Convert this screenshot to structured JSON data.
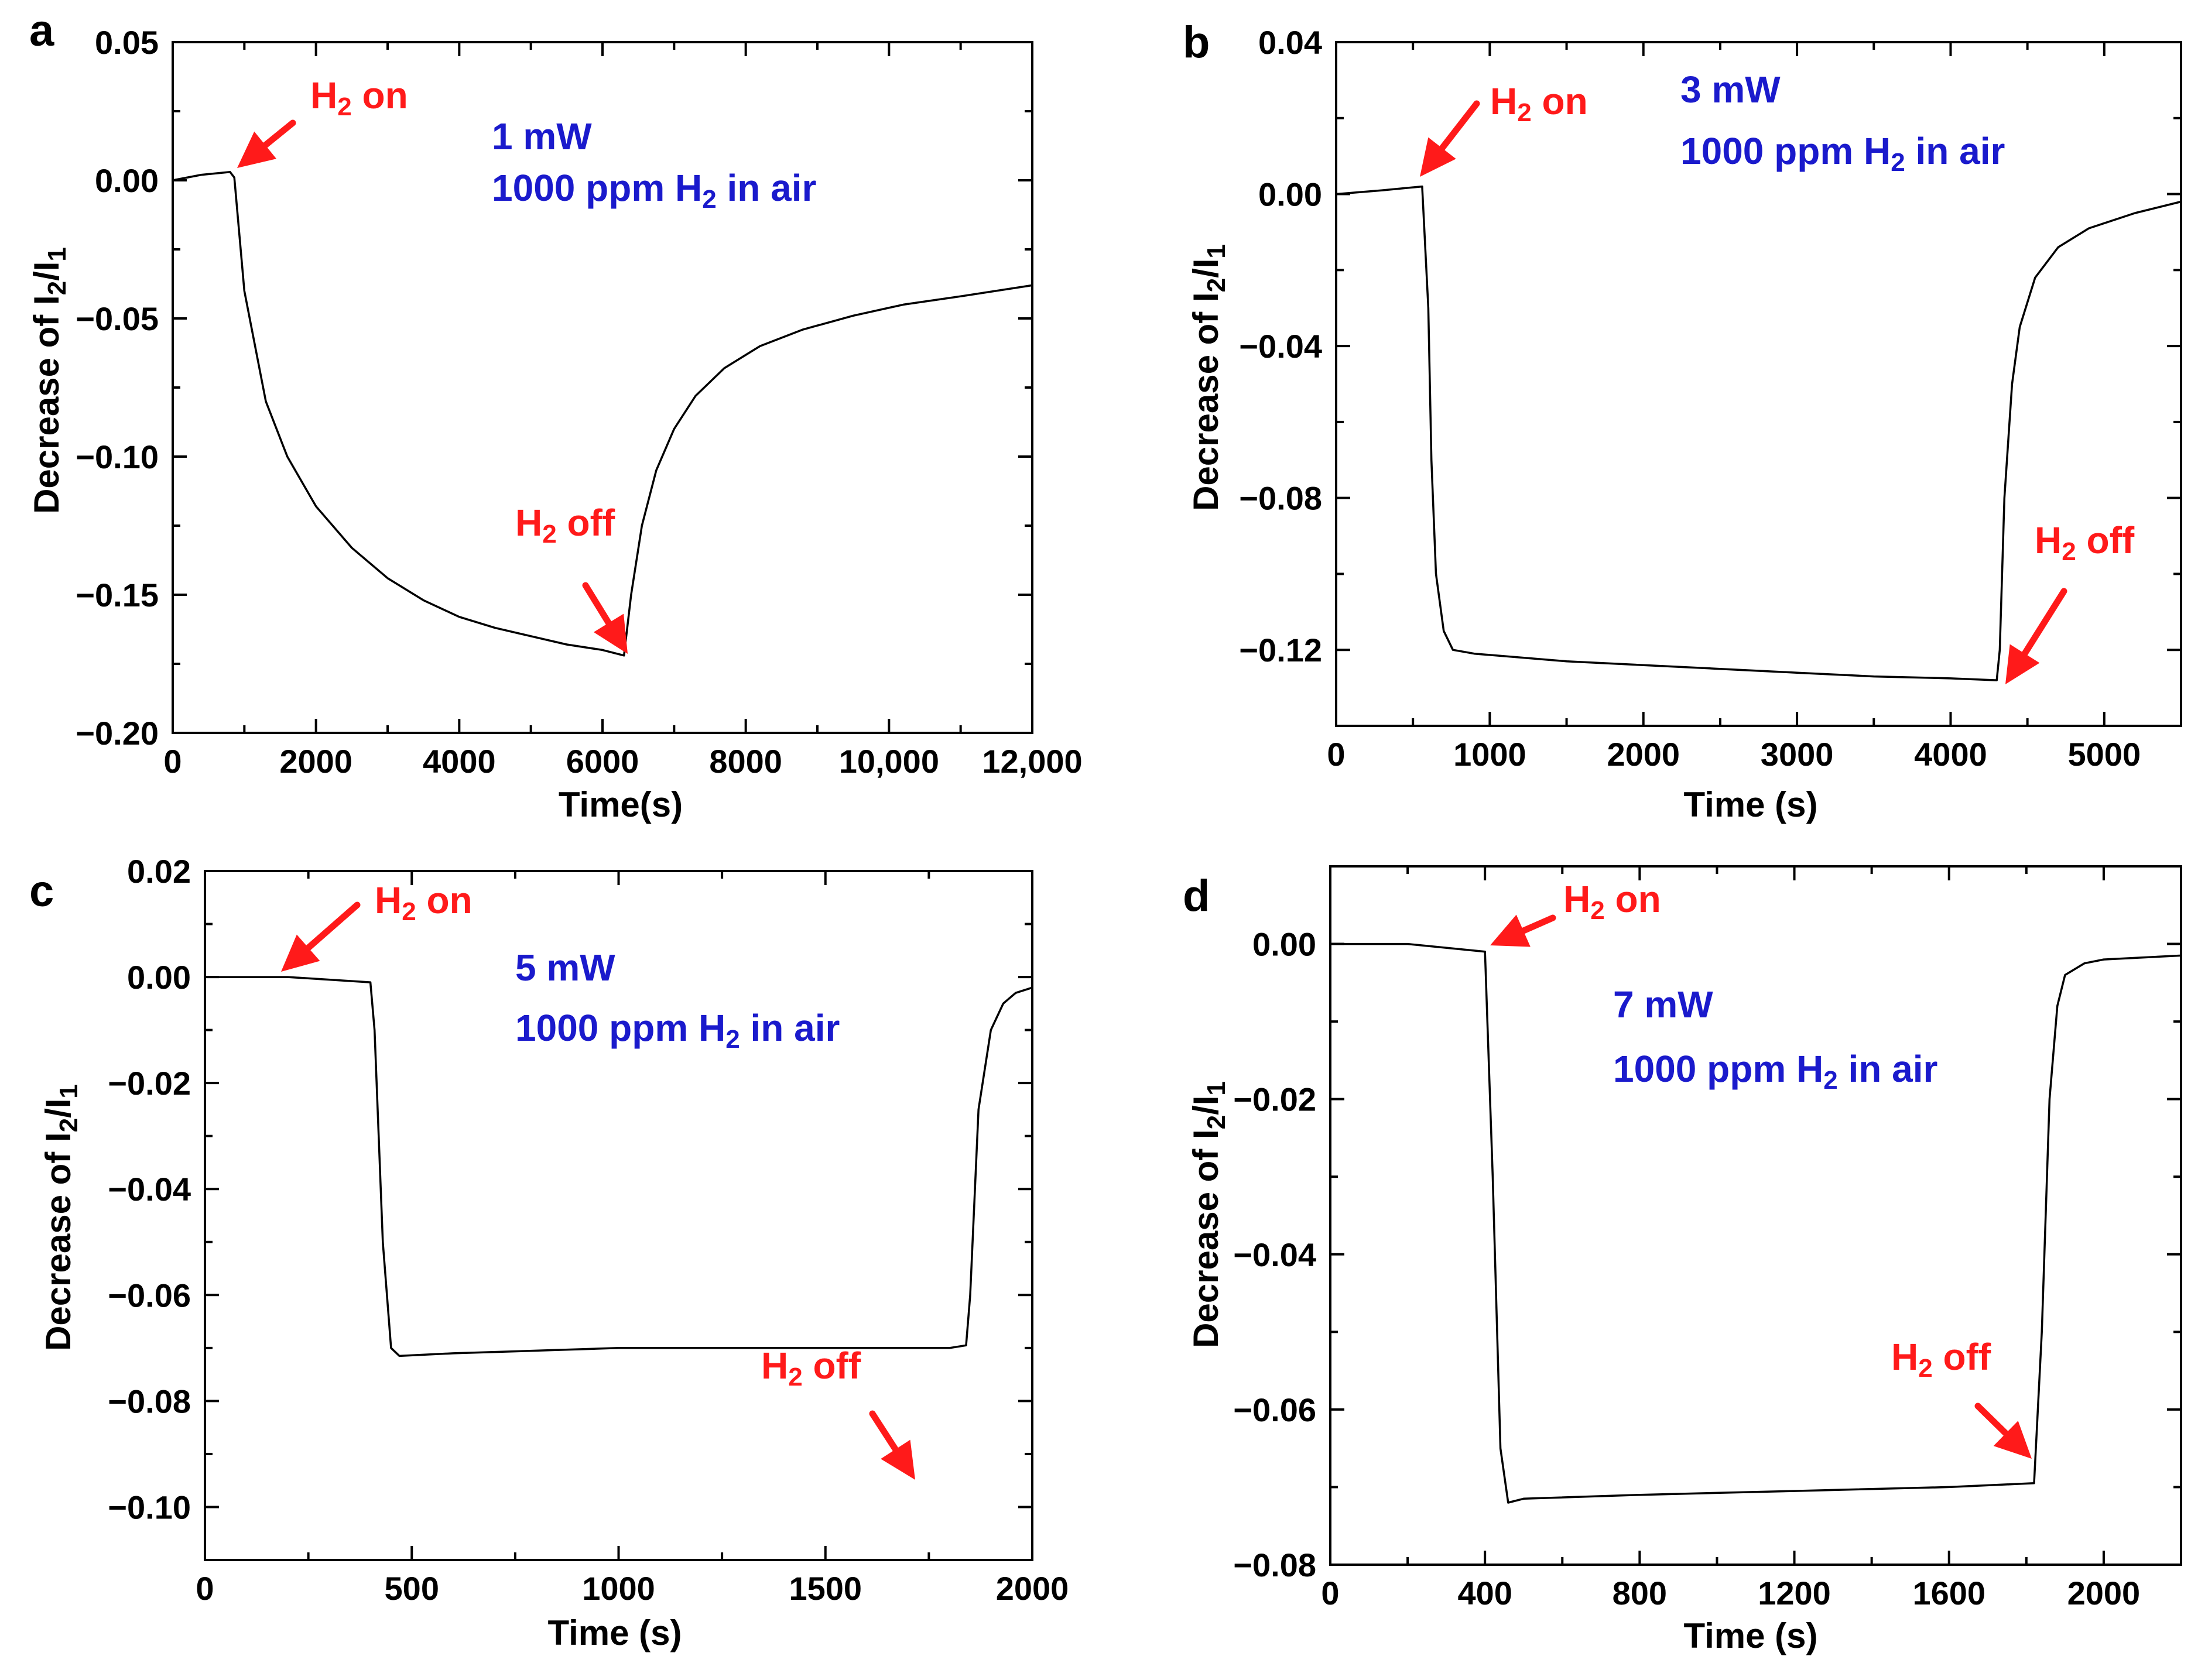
{
  "colors": {
    "axis": "#000000",
    "curve": "#000000",
    "annotation": "#ff1a1a",
    "condition": "#1a1acc"
  },
  "chart_data": [
    {
      "panel": "a",
      "type": "line",
      "xlabel": "Time(s)",
      "ylabel": {
        "prefix": "Decrease of I",
        "sub1": "2",
        "slash": "/I",
        "sub2": "1"
      },
      "xlim": [
        0,
        12000
      ],
      "ylim": [
        -0.2,
        0.05
      ],
      "xticks": [
        0,
        2000,
        4000,
        6000,
        8000,
        10000,
        12000
      ],
      "xtick_labels": [
        "0",
        "2000",
        "4000",
        "6000",
        "8000",
        "10,000",
        "12,000"
      ],
      "yticks": [
        -0.2,
        -0.15,
        -0.1,
        -0.05,
        0.0,
        0.05
      ],
      "ytick_labels": [
        "−0.20",
        "−0.15",
        "−0.10",
        "−0.05",
        "0.00",
        "0.05"
      ],
      "conditions": [
        "1 mW",
        "1000 ppm H2 in air"
      ],
      "on_label": "H2 on",
      "off_label": "H2 off",
      "on_arrow_tip": [
        850,
        0.003
      ],
      "off_arrow_tip": [
        6300,
        -0.172
      ],
      "x": [
        0,
        400,
        800,
        860,
        1000,
        1300,
        1600,
        2000,
        2500,
        3000,
        3500,
        4000,
        4500,
        5000,
        5500,
        6000,
        6300,
        6400,
        6550,
        6750,
        7000,
        7300,
        7700,
        8200,
        8800,
        9500,
        10200,
        11000,
        12000
      ],
      "y": [
        0.0,
        0.002,
        0.003,
        0.001,
        -0.04,
        -0.08,
        -0.1,
        -0.118,
        -0.133,
        -0.144,
        -0.152,
        -0.158,
        -0.162,
        -0.165,
        -0.168,
        -0.17,
        -0.172,
        -0.15,
        -0.125,
        -0.105,
        -0.09,
        -0.078,
        -0.068,
        -0.06,
        -0.054,
        -0.049,
        -0.045,
        -0.042,
        -0.038
      ]
    },
    {
      "panel": "b",
      "type": "line",
      "xlabel": "Time (s)",
      "ylabel": {
        "prefix": "Decrease of I",
        "sub1": "2",
        "slash": "/I",
        "sub2": "1"
      },
      "xlim": [
        0,
        5500
      ],
      "ylim": [
        -0.14,
        0.04
      ],
      "xticks": [
        0,
        1000,
        2000,
        3000,
        4000,
        5000
      ],
      "xtick_labels": [
        "0",
        "1000",
        "2000",
        "3000",
        "4000",
        "5000"
      ],
      "yticks": [
        -0.12,
        -0.08,
        -0.04,
        0.0,
        0.04
      ],
      "ytick_labels": [
        "−0.12",
        "−0.08",
        "−0.04",
        "0.00",
        "0.04"
      ],
      "conditions": [
        "3 mW",
        "1000 ppm H2 in air"
      ],
      "on_label": "H2 on",
      "off_label": "H2 off",
      "on_arrow_tip": [
        560,
        0.002
      ],
      "off_arrow_tip": [
        4320,
        -0.128
      ],
      "x": [
        0,
        300,
        560,
        600,
        620,
        650,
        700,
        760,
        900,
        1500,
        2000,
        2500,
        3000,
        3500,
        4000,
        4300,
        4320,
        4350,
        4400,
        4450,
        4550,
        4700,
        4900,
        5200,
        5500
      ],
      "y": [
        0.0,
        0.001,
        0.002,
        -0.03,
        -0.07,
        -0.1,
        -0.115,
        -0.12,
        -0.121,
        -0.123,
        -0.124,
        -0.125,
        -0.126,
        -0.127,
        -0.1275,
        -0.128,
        -0.12,
        -0.08,
        -0.05,
        -0.035,
        -0.022,
        -0.014,
        -0.009,
        -0.005,
        -0.002
      ]
    },
    {
      "panel": "c",
      "type": "line",
      "xlabel": "Time (s)",
      "ylabel": {
        "prefix": "Decrease of I",
        "sub1": "2",
        "slash": "/I",
        "sub2": "1"
      },
      "xlim": [
        0,
        2000
      ],
      "ylim": [
        -0.11,
        0.02
      ],
      "xticks": [
        0,
        500,
        1000,
        1500,
        2000
      ],
      "xtick_labels": [
        "0",
        "500",
        "1000",
        "1500",
        "2000"
      ],
      "yticks": [
        -0.1,
        -0.08,
        -0.06,
        -0.04,
        -0.02,
        0.0,
        0.02
      ],
      "ytick_labels": [
        "−0.10",
        "−0.08",
        "−0.06",
        "−0.04",
        "−0.02",
        "0.00",
        "0.02"
      ],
      "conditions": [
        "5 mW",
        "1000 ppm H2 in air"
      ],
      "on_label": "H2 on",
      "off_label": "H2 off",
      "on_arrow_tip": [
        190,
        0.0
      ],
      "off_arrow_tip": [
        1720,
        -0.095
      ],
      "x": [
        0,
        200,
        400,
        410,
        430,
        450,
        470,
        600,
        800,
        1000,
        1200,
        1400,
        1600,
        1800,
        1840,
        1850,
        1870,
        1900,
        1930,
        1960,
        2000
      ],
      "y": [
        0.0,
        0.0,
        -0.001,
        -0.01,
        -0.05,
        -0.07,
        -0.0715,
        -0.071,
        -0.0705,
        -0.07,
        -0.07,
        -0.07,
        -0.07,
        -0.07,
        -0.0695,
        -0.06,
        -0.025,
        -0.01,
        -0.005,
        -0.003,
        -0.002
      ]
    },
    {
      "panel": "d",
      "type": "line",
      "xlabel": "Time (s)",
      "ylabel": {
        "prefix": "Decrease of I",
        "sub1": "2",
        "slash": "/I",
        "sub2": "1"
      },
      "xlim": [
        0,
        2200
      ],
      "ylim": [
        -0.08,
        0.01
      ],
      "xticks": [
        0,
        400,
        800,
        1200,
        1600,
        2000
      ],
      "xtick_labels": [
        "0",
        "400",
        "800",
        "1200",
        "1600",
        "2000"
      ],
      "yticks": [
        -0.08,
        -0.06,
        -0.04,
        -0.02,
        0.0
      ],
      "ytick_labels": [
        "−0.08",
        "−0.06",
        "−0.04",
        "−0.02",
        "0.00"
      ],
      "conditions": [
        "7 mW",
        "1000 ppm H2 in air"
      ],
      "on_label": "H2 on",
      "off_label": "H2 off",
      "on_arrow_tip": [
        410,
        -0.0015
      ],
      "off_arrow_tip": [
        1830,
        -0.0695
      ],
      "x": [
        0,
        200,
        400,
        420,
        440,
        460,
        500,
        800,
        1200,
        1600,
        1820,
        1840,
        1860,
        1880,
        1900,
        1950,
        2000,
        2200
      ],
      "y": [
        0.0,
        0.0,
        -0.001,
        -0.03,
        -0.065,
        -0.072,
        -0.0715,
        -0.071,
        -0.0705,
        -0.07,
        -0.0695,
        -0.05,
        -0.02,
        -0.008,
        -0.004,
        -0.0025,
        -0.002,
        -0.0015
      ]
    }
  ],
  "panels": [
    {
      "letter": "a",
      "conditions": {
        "line1": "1 mW",
        "line2_prefix": "1000 ppm H",
        "line2_sub": "2",
        "line2_suffix": " in air"
      },
      "on": {
        "prefix": "H",
        "sub": "2",
        "suffix": " on"
      },
      "off": {
        "prefix": "H",
        "sub": "2",
        "suffix": " off"
      }
    },
    {
      "letter": "b",
      "conditions": {
        "line1": "3 mW",
        "line2_prefix": "1000 ppm H",
        "line2_sub": "2",
        "line2_suffix": " in air"
      },
      "on": {
        "prefix": "H",
        "sub": "2",
        "suffix": " on"
      },
      "off": {
        "prefix": "H",
        "sub": "2",
        "suffix": " off"
      }
    },
    {
      "letter": "c",
      "conditions": {
        "line1": "5 mW",
        "line2_prefix": "1000 ppm H",
        "line2_sub": "2",
        "line2_suffix": " in air"
      },
      "on": {
        "prefix": "H",
        "sub": "2",
        "suffix": " on"
      },
      "off": {
        "prefix": "H",
        "sub": "2",
        "suffix": " off"
      }
    },
    {
      "letter": "d",
      "conditions": {
        "line1": "7 mW",
        "line2_prefix": "1000 ppm H",
        "line2_sub": "2",
        "line2_suffix": " in air"
      },
      "on": {
        "prefix": "H",
        "sub": "2",
        "suffix": " on"
      },
      "off": {
        "prefix": "H",
        "sub": "2",
        "suffix": " off"
      }
    }
  ]
}
